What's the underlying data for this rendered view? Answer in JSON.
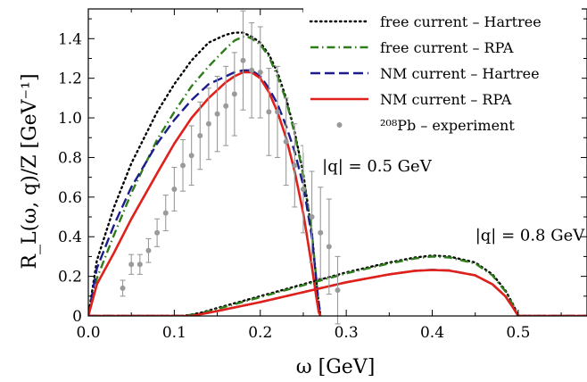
{
  "chart_data": {
    "type": "line",
    "xlabel": "ω [GeV]",
    "ylabel": "R_L(ω, q)/Z [GeV⁻¹]",
    "xlim": [
      0.0,
      0.58
    ],
    "ylim": [
      0.0,
      1.55
    ],
    "x_ticks": [
      "0.0",
      "0.1",
      "0.2",
      "0.3",
      "0.4",
      "0.5"
    ],
    "x_tick_values": [
      0.0,
      0.1,
      0.2,
      0.3,
      0.4,
      0.5
    ],
    "y_ticks": [
      "0",
      "0.2",
      "0.4",
      "0.6",
      "0.8",
      "1.0",
      "1.2",
      "1.4"
    ],
    "y_tick_values": [
      0,
      0.2,
      0.4,
      0.6,
      0.8,
      1.0,
      1.2,
      1.4
    ],
    "grid": false,
    "legend_position": "top-right",
    "annotations": [
      {
        "text": "|q| = 0.5 GeV",
        "x": 0.272,
        "y": 0.73
      },
      {
        "text": "|q| = 0.8 GeV",
        "x": 0.45,
        "y": 0.38
      }
    ],
    "series": [
      {
        "name": "free current – Hartree",
        "style": "dotted",
        "color": "#000000",
        "group": "q05",
        "x": [
          0.0,
          0.01,
          0.03,
          0.05,
          0.08,
          0.1,
          0.12,
          0.14,
          0.16,
          0.17,
          0.175,
          0.18,
          0.19,
          0.2,
          0.21,
          0.22,
          0.23,
          0.24,
          0.25,
          0.26,
          0.267,
          0.27
        ],
        "y": [
          0.0,
          0.28,
          0.55,
          0.77,
          1.03,
          1.17,
          1.29,
          1.38,
          1.42,
          1.43,
          1.43,
          1.43,
          1.41,
          1.38,
          1.32,
          1.23,
          1.1,
          0.93,
          0.72,
          0.42,
          0.1,
          0.0
        ]
      },
      {
        "name": "free current – RPA",
        "style": "dashdot",
        "color": "#2e7d1a",
        "group": "q05",
        "x": [
          0.0,
          0.01,
          0.03,
          0.05,
          0.08,
          0.1,
          0.12,
          0.14,
          0.16,
          0.17,
          0.18,
          0.185,
          0.19,
          0.2,
          0.21,
          0.22,
          0.23,
          0.24,
          0.25,
          0.26,
          0.267,
          0.27
        ],
        "y": [
          0.0,
          0.19,
          0.41,
          0.62,
          0.89,
          1.03,
          1.16,
          1.26,
          1.35,
          1.39,
          1.41,
          1.41,
          1.4,
          1.37,
          1.31,
          1.21,
          1.09,
          0.92,
          0.71,
          0.42,
          0.1,
          0.0
        ]
      },
      {
        "name": "NM current – Hartree",
        "style": "dashed",
        "color": "#1c1c8c",
        "group": "q05",
        "x": [
          0.0,
          0.01,
          0.03,
          0.05,
          0.08,
          0.1,
          0.12,
          0.14,
          0.16,
          0.17,
          0.18,
          0.19,
          0.2,
          0.21,
          0.22,
          0.23,
          0.24,
          0.25,
          0.26,
          0.267,
          0.27
        ],
        "y": [
          0.0,
          0.24,
          0.46,
          0.65,
          0.87,
          0.99,
          1.09,
          1.17,
          1.21,
          1.23,
          1.24,
          1.24,
          1.21,
          1.15,
          1.07,
          0.96,
          0.83,
          0.66,
          0.4,
          0.1,
          0.0
        ]
      },
      {
        "name": "NM current – RPA",
        "style": "solid",
        "color": "#e0201b",
        "group": "q05",
        "x": [
          0.0,
          0.01,
          0.03,
          0.05,
          0.08,
          0.1,
          0.12,
          0.14,
          0.16,
          0.17,
          0.18,
          0.19,
          0.2,
          0.21,
          0.22,
          0.23,
          0.24,
          0.25,
          0.26,
          0.265,
          0.268,
          0.27
        ],
        "y": [
          0.0,
          0.16,
          0.32,
          0.49,
          0.72,
          0.87,
          1.0,
          1.1,
          1.18,
          1.21,
          1.23,
          1.23,
          1.2,
          1.13,
          1.03,
          0.9,
          0.73,
          0.52,
          0.25,
          0.1,
          0.02,
          0.0
        ]
      },
      {
        "name": "",
        "style": "dotted",
        "color": "#000000",
        "group": "q08",
        "x": [
          0.0,
          0.11,
          0.13,
          0.15,
          0.2,
          0.25,
          0.3,
          0.35,
          0.38,
          0.4,
          0.42,
          0.45,
          0.47,
          0.485,
          0.495,
          0.5,
          0.58
        ],
        "y": [
          0.0,
          0.0,
          0.015,
          0.04,
          0.1,
          0.16,
          0.22,
          0.27,
          0.295,
          0.305,
          0.3,
          0.27,
          0.21,
          0.13,
          0.05,
          0.0,
          0.0
        ]
      },
      {
        "name": "",
        "style": "dashdot",
        "color": "#2e7d1a",
        "group": "q08",
        "x": [
          0.0,
          0.11,
          0.13,
          0.15,
          0.2,
          0.25,
          0.3,
          0.35,
          0.38,
          0.4,
          0.42,
          0.45,
          0.47,
          0.485,
          0.495,
          0.5,
          0.58
        ],
        "y": [
          0.0,
          0.0,
          0.012,
          0.035,
          0.095,
          0.155,
          0.215,
          0.265,
          0.29,
          0.3,
          0.295,
          0.265,
          0.205,
          0.125,
          0.045,
          0.0,
          0.0
        ]
      },
      {
        "name": "",
        "style": "dashed",
        "color": "#1c1c8c",
        "group": "q08",
        "x": [
          0.0,
          0.12,
          0.15,
          0.2,
          0.25,
          0.3,
          0.35,
          0.38,
          0.4,
          0.42,
          0.45,
          0.47,
          0.485,
          0.495,
          0.5,
          0.58
        ],
        "y": [
          0.0,
          0.0,
          0.025,
          0.07,
          0.12,
          0.17,
          0.21,
          0.228,
          0.233,
          0.23,
          0.205,
          0.16,
          0.1,
          0.035,
          0.0,
          0.0
        ]
      },
      {
        "name": "",
        "style": "solid",
        "color": "#e0201b",
        "group": "q08",
        "x": [
          0.0,
          0.12,
          0.15,
          0.2,
          0.25,
          0.3,
          0.35,
          0.38,
          0.4,
          0.42,
          0.45,
          0.47,
          0.485,
          0.495,
          0.5,
          0.58
        ],
        "y": [
          0.0,
          0.0,
          0.025,
          0.07,
          0.12,
          0.17,
          0.21,
          0.228,
          0.232,
          0.229,
          0.205,
          0.16,
          0.1,
          0.035,
          0.0,
          0.0
        ]
      }
    ],
    "experiment": {
      "name": "²⁰⁸Pb – experiment",
      "color": "#9a9a9a",
      "points": [
        {
          "x": 0.04,
          "y": 0.14,
          "err": 0.04
        },
        {
          "x": 0.05,
          "y": 0.26,
          "err": 0.05
        },
        {
          "x": 0.06,
          "y": 0.26,
          "err": 0.05
        },
        {
          "x": 0.07,
          "y": 0.33,
          "err": 0.06
        },
        {
          "x": 0.08,
          "y": 0.42,
          "err": 0.07
        },
        {
          "x": 0.09,
          "y": 0.52,
          "err": 0.09
        },
        {
          "x": 0.1,
          "y": 0.64,
          "err": 0.11
        },
        {
          "x": 0.11,
          "y": 0.76,
          "err": 0.13
        },
        {
          "x": 0.12,
          "y": 0.81,
          "err": 0.15
        },
        {
          "x": 0.13,
          "y": 0.91,
          "err": 0.17
        },
        {
          "x": 0.14,
          "y": 0.97,
          "err": 0.18
        },
        {
          "x": 0.15,
          "y": 1.02,
          "err": 0.19
        },
        {
          "x": 0.16,
          "y": 1.06,
          "err": 0.2
        },
        {
          "x": 0.17,
          "y": 1.12,
          "err": 0.21
        },
        {
          "x": 0.18,
          "y": 1.29,
          "err": 0.25
        },
        {
          "x": 0.19,
          "y": 1.24,
          "err": 0.24
        },
        {
          "x": 0.2,
          "y": 1.23,
          "err": 0.23
        },
        {
          "x": 0.21,
          "y": 1.03,
          "err": 0.22
        },
        {
          "x": 0.22,
          "y": 1.03,
          "err": 0.23
        },
        {
          "x": 0.23,
          "y": 0.88,
          "err": 0.22
        },
        {
          "x": 0.24,
          "y": 0.76,
          "err": 0.21
        },
        {
          "x": 0.25,
          "y": 0.64,
          "err": 0.22
        },
        {
          "x": 0.26,
          "y": 0.5,
          "err": 0.23
        },
        {
          "x": 0.27,
          "y": 0.42,
          "err": 0.23
        },
        {
          "x": 0.28,
          "y": 0.35,
          "err": 0.24
        },
        {
          "x": 0.29,
          "y": 0.13,
          "err": 0.17
        }
      ]
    }
  }
}
